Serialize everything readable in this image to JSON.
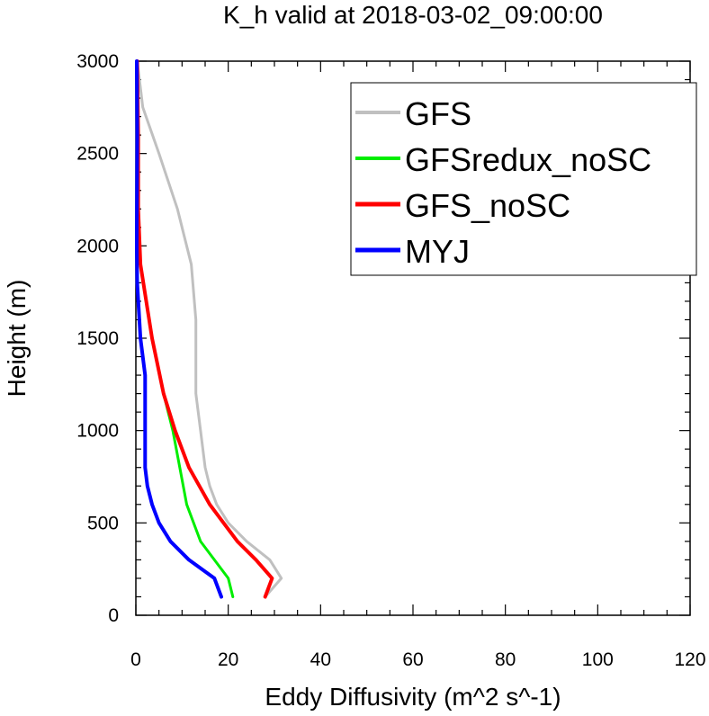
{
  "chart_data": {
    "type": "line",
    "title": "K_h valid at 2018-03-02_09:00:00",
    "xlabel": "Eddy Diffusivity (m^2 s^-1)",
    "ylabel": "Height (m)",
    "xlim": [
      0,
      120
    ],
    "ylim": [
      0,
      3000
    ],
    "x_ticks": [
      0,
      20,
      40,
      60,
      80,
      100,
      120
    ],
    "y_ticks": [
      0,
      500,
      1000,
      1500,
      2000,
      2500,
      3000
    ],
    "grid": false,
    "legend_position": "top-right",
    "series": [
      {
        "name": "GFS",
        "color": "#c0c0c0",
        "width": 3,
        "points": [
          [
            28,
            100
          ],
          [
            31.5,
            200
          ],
          [
            29,
            300
          ],
          [
            24,
            400
          ],
          [
            20,
            500
          ],
          [
            17.5,
            600
          ],
          [
            16,
            700
          ],
          [
            15,
            800
          ],
          [
            14,
            1000
          ],
          [
            13,
            1200
          ],
          [
            13,
            1600
          ],
          [
            12,
            1900
          ],
          [
            9,
            2200
          ],
          [
            5,
            2500
          ],
          [
            1.5,
            2750
          ],
          [
            0.3,
            3000
          ]
        ]
      },
      {
        "name": "GFSredux_noSC",
        "color": "#00ee00",
        "width": 3,
        "points": [
          [
            21,
            100
          ],
          [
            20,
            200
          ],
          [
            14,
            400
          ],
          [
            11,
            600
          ],
          [
            9.5,
            800
          ],
          [
            8,
            1000
          ],
          [
            6,
            1200
          ],
          [
            3.5,
            1500
          ],
          [
            1,
            1900
          ],
          [
            0.5,
            2200
          ],
          [
            0.3,
            2600
          ],
          [
            0.2,
            3000
          ]
        ]
      },
      {
        "name": "GFS_noSC",
        "color": "#ff0000",
        "width": 4,
        "points": [
          [
            28,
            100
          ],
          [
            29.5,
            200
          ],
          [
            26,
            300
          ],
          [
            22,
            400
          ],
          [
            16,
            600
          ],
          [
            11.5,
            800
          ],
          [
            8.5,
            1000
          ],
          [
            6,
            1200
          ],
          [
            3.5,
            1500
          ],
          [
            1,
            1900
          ],
          [
            0.5,
            2200
          ],
          [
            0.5,
            2600
          ],
          [
            0.3,
            3000
          ]
        ]
      },
      {
        "name": "MYJ",
        "color": "#0000ff",
        "width": 4,
        "points": [
          [
            18.5,
            100
          ],
          [
            17,
            200
          ],
          [
            11.5,
            300
          ],
          [
            7.5,
            400
          ],
          [
            5,
            500
          ],
          [
            3.5,
            600
          ],
          [
            2.5,
            700
          ],
          [
            2,
            800
          ],
          [
            2,
            1000
          ],
          [
            2,
            1300
          ],
          [
            1,
            1500
          ],
          [
            0.3,
            1800
          ],
          [
            0.2,
            2000
          ],
          [
            0.3,
            2600
          ],
          [
            0.2,
            3000
          ]
        ]
      }
    ]
  }
}
